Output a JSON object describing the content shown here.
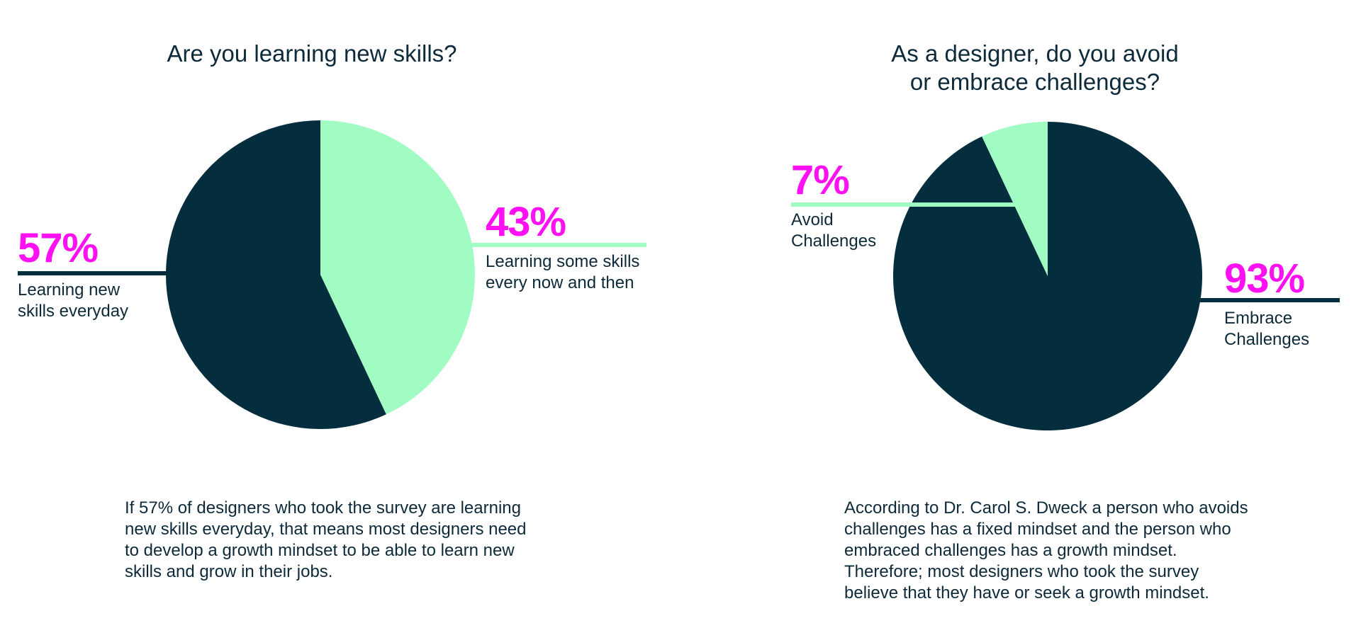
{
  "colors": {
    "dark": "#042e3d",
    "light": "#a0fcc2",
    "accent": "#ff11f3",
    "text": "#0d2a3a"
  },
  "chart_data": [
    {
      "type": "pie",
      "title": "Are you learning new skills?",
      "slices": [
        {
          "label": "Learning new skills everyday",
          "value": 57,
          "display": "57%",
          "color": "#042e3d"
        },
        {
          "label": "Learning some skills every now and then",
          "value": 43,
          "display": "43%",
          "color": "#a0fcc2"
        }
      ],
      "description": "If 57% of designers who took the survey are learning new skills everyday, that means most designers need to develop a growth mindset to be able to learn new skills and grow in their jobs."
    },
    {
      "type": "pie",
      "title_lines": [
        "As a designer, do you avoid",
        "or embrace challenges?"
      ],
      "slices": [
        {
          "label": "Embrace Challenges",
          "value": 93,
          "display": "93%",
          "color": "#042e3d"
        },
        {
          "label": "Avoid Challenges",
          "value": 7,
          "display": "7%",
          "color": "#a0fcc2"
        }
      ],
      "description": "According to Dr. Carol S. Dweck a person who avoids challenges has a fixed mindset and the person who embraced challenges has a growth mindset. Therefore; most designers who took the survey believe that they have or seek a growth mindset."
    }
  ]
}
